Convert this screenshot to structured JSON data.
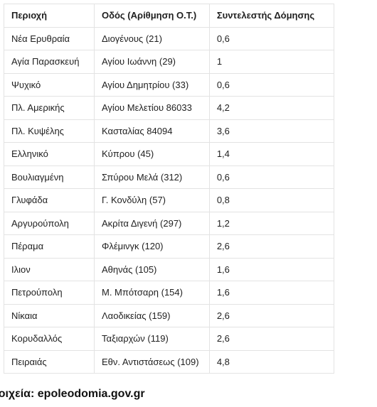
{
  "table": {
    "headers": [
      "Περιοχή",
      "Οδός (Αρίθμηση Ο.Τ.)",
      "Συντελεστής Δόμησης"
    ],
    "rows": [
      [
        "Νέα Ερυθραία",
        "Διογένους (21)",
        "0,6"
      ],
      [
        "Αγία Παρασκευή",
        "Αγίου Ιωάννη (29)",
        "1"
      ],
      [
        "Ψυχικό",
        "Αγίου Δημητρίου (33)",
        "0,6"
      ],
      [
        "Πλ. Αμερικής",
        "Αγίου Μελετίου 86033",
        "4,2"
      ],
      [
        "Πλ. Κυψέλης",
        "Κασταλίας 84094",
        "3,6"
      ],
      [
        "Ελληνικό",
        "Κύπρου (45)",
        "1,4"
      ],
      [
        "Βουλιαγμένη",
        "Σπύρου Μελά (312)",
        "0,6"
      ],
      [
        "Γλυφάδα",
        "Γ. Κονδύλη (57)",
        "0,8"
      ],
      [
        "Αργυρούπολη",
        "Ακρίτα Διγενή (297)",
        "1,2"
      ],
      [
        "Πέραμα",
        "Φλέμινγκ (120)",
        "2,6"
      ],
      [
        "Ιλιον",
        "Αθηνάς (105)",
        "1,6"
      ],
      [
        "Πετρούπολη",
        "Μ. Μπότσαρη (154)",
        "1,6"
      ],
      [
        "Νίκαια",
        "Λαοδικείας (159)",
        "2,6"
      ],
      [
        "Κορυδαλλός",
        "Ταξιαρχών (119)",
        "2,6"
      ],
      [
        "Πειραιάς",
        "Εθν. Αντιστάσεως (109)",
        "4,8"
      ]
    ]
  },
  "source": "τοιχεία: epoleodomia.gov.gr"
}
